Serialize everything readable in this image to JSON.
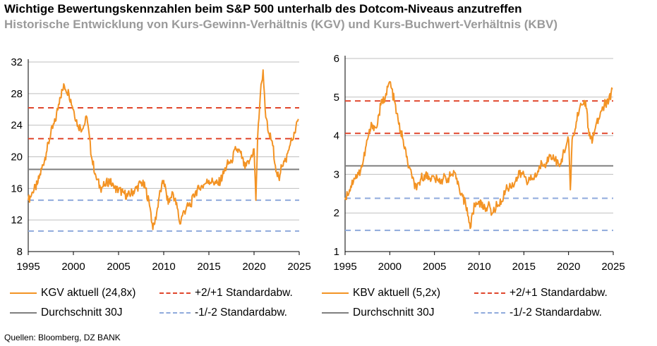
{
  "title": "Wichtige Bewertungskennzahlen beim S&P 500 unterhalb des Dotcom-Niveaus anzutreffen",
  "subtitle": "Historische Entwicklung von Kurs-Gewinn-Verhältnis (KGV) und Kurs-Buchwert-Verhältnis (KBV)",
  "source": "Quellen: Bloomberg, DZ BANK",
  "colors": {
    "series": "#F39324",
    "mean": "#7f7f7f",
    "upper": "#E0462C",
    "lower": "#8FAADC",
    "grid": "#bfbfbf"
  },
  "chart_data": [
    {
      "type": "line",
      "x_ticks": [
        "1995",
        "2000",
        "2005",
        "2010",
        "2015",
        "2020",
        "2025"
      ],
      "y_ticks": [
        "8",
        "12",
        "16",
        "20",
        "24",
        "28",
        "32"
      ],
      "xlim": [
        1995,
        2025
      ],
      "ylim": [
        8,
        32
      ],
      "grid": true,
      "legend": [
        "KGV aktuell (24,8x)",
        "+2/+1 Standardabw.",
        "Durchschnitt 30J",
        "-1/-2 Standardabw."
      ],
      "series": [
        {
          "role": "actual",
          "x": [
            1995.0,
            1995.5,
            1996.0,
            1996.5,
            1997.0,
            1997.5,
            1998.0,
            1998.5,
            1999.0,
            1999.5,
            2000.0,
            2000.5,
            2001.0,
            2001.5,
            2002.0,
            2002.5,
            2003.0,
            2003.5,
            2004.0,
            2004.5,
            2005.0,
            2005.5,
            2006.0,
            2006.5,
            2007.0,
            2007.5,
            2008.0,
            2008.5,
            2008.8,
            2009.0,
            2009.3,
            2009.5,
            2010.0,
            2010.5,
            2011.0,
            2011.5,
            2011.8,
            2012.0,
            2012.5,
            2013.0,
            2013.5,
            2014.0,
            2014.5,
            2015.0,
            2015.5,
            2016.0,
            2016.5,
            2017.0,
            2017.5,
            2018.0,
            2018.5,
            2019.0,
            2019.5,
            2020.0,
            2020.2,
            2020.4,
            2020.7,
            2021.0,
            2021.3,
            2021.6,
            2022.0,
            2022.5,
            2022.8,
            2023.0,
            2023.5,
            2024.0,
            2024.5,
            2024.9
          ],
          "y": [
            14.5,
            15.5,
            16.5,
            18.5,
            20.5,
            23.0,
            24.5,
            27.5,
            29.0,
            28.0,
            26.0,
            24.0,
            23.5,
            25.0,
            20.0,
            17.5,
            16.0,
            16.5,
            17.0,
            16.0,
            15.8,
            15.5,
            15.0,
            15.5,
            16.0,
            16.8,
            16.0,
            13.5,
            10.8,
            11.5,
            13.5,
            15.0,
            17.0,
            14.0,
            15.5,
            13.5,
            11.5,
            12.5,
            13.5,
            14.0,
            15.5,
            16.0,
            16.5,
            17.0,
            16.8,
            16.5,
            17.5,
            19.0,
            19.5,
            21.0,
            20.5,
            18.5,
            19.5,
            21.0,
            14.5,
            22.5,
            28.0,
            31.0,
            25.0,
            23.0,
            22.0,
            18.0,
            17.0,
            19.0,
            19.5,
            21.5,
            23.0,
            24.8
          ]
        },
        {
          "role": "mean",
          "value": 18.4
        },
        {
          "role": "upper",
          "values": [
            26.2,
            22.3
          ]
        },
        {
          "role": "lower",
          "values": [
            14.5,
            10.6
          ]
        }
      ]
    },
    {
      "type": "line",
      "x_ticks": [
        "1995",
        "2000",
        "2005",
        "2010",
        "2015",
        "2020",
        "2025"
      ],
      "y_ticks": [
        "1",
        "2",
        "3",
        "4",
        "5",
        "6"
      ],
      "xlim": [
        1995,
        2025
      ],
      "ylim": [
        1,
        6
      ],
      "grid": true,
      "legend": [
        "KBV aktuell (5,2x)",
        "+2/+1 Standardabw.",
        "Durchschnitt 30J",
        "-1/-2 Standardabw."
      ],
      "series": [
        {
          "role": "actual",
          "x": [
            1995.0,
            1995.5,
            1996.0,
            1996.5,
            1997.0,
            1997.5,
            1998.0,
            1998.5,
            1999.0,
            1999.5,
            2000.0,
            2000.5,
            2001.0,
            2001.5,
            2002.0,
            2002.5,
            2003.0,
            2003.5,
            2004.0,
            2004.5,
            2005.0,
            2005.5,
            2006.0,
            2006.5,
            2007.0,
            2007.5,
            2008.0,
            2008.5,
            2008.8,
            2009.0,
            2009.3,
            2009.5,
            2010.0,
            2010.5,
            2011.0,
            2011.5,
            2012.0,
            2012.5,
            2013.0,
            2013.5,
            2014.0,
            2014.5,
            2015.0,
            2015.5,
            2016.0,
            2016.5,
            2017.0,
            2017.5,
            2018.0,
            2018.5,
            2019.0,
            2019.5,
            2020.0,
            2020.2,
            2020.4,
            2020.8,
            2021.0,
            2021.5,
            2021.9,
            2022.3,
            2022.7,
            2023.0,
            2023.5,
            2024.0,
            2024.5,
            2024.9
          ],
          "y": [
            2.4,
            2.6,
            2.9,
            3.0,
            3.3,
            3.9,
            4.3,
            4.2,
            4.8,
            5.0,
            5.4,
            4.9,
            4.3,
            3.9,
            3.3,
            2.9,
            2.6,
            2.9,
            3.0,
            2.9,
            2.9,
            2.8,
            2.9,
            2.9,
            3.0,
            2.9,
            2.5,
            2.2,
            1.9,
            1.6,
            2.0,
            2.2,
            2.3,
            2.1,
            2.2,
            2.0,
            2.2,
            2.3,
            2.6,
            2.7,
            2.8,
            3.0,
            3.0,
            2.8,
            2.9,
            3.0,
            3.3,
            3.3,
            3.5,
            3.4,
            3.2,
            3.6,
            3.9,
            2.6,
            3.9,
            4.2,
            4.6,
            4.8,
            4.9,
            4.0,
            3.9,
            4.2,
            4.5,
            4.8,
            4.9,
            5.2
          ]
        },
        {
          "role": "mean",
          "value": 3.22
        },
        {
          "role": "upper",
          "values": [
            4.9,
            4.06
          ]
        },
        {
          "role": "lower",
          "values": [
            2.38,
            1.55
          ]
        }
      ]
    }
  ]
}
